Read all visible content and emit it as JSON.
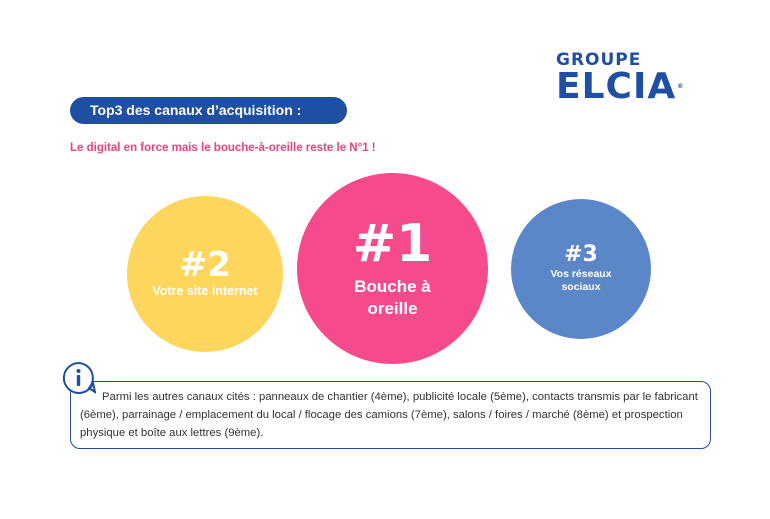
{
  "logo": {
    "line1": "GROUPE",
    "line2": "ELCIA",
    "reg": "®"
  },
  "heading": "Top3 des canaux d’acquisition :",
  "subtitle": "Le digital en force mais le bouche-à-oreille reste le N°1 !",
  "ranks": [
    {
      "rank": "#1",
      "label": "Bouche à oreille",
      "color": "#f54b8d"
    },
    {
      "rank": "#2",
      "label": "Votre site internet",
      "color": "#fdd65d"
    },
    {
      "rank": "#3",
      "label": "Vos réseaux sociaux",
      "color": "#5b86c8"
    }
  ],
  "info": {
    "icon": "info-icon",
    "text": "Parmi les autres canaux cités : panneaux de chantier (4ème), publicité locale (5ème), contacts transmis par le fabricant (6ème), parrainage / emplacement du local / flocage des camions (7ème), salons / foires / marché (8ème) et prospection physique et boîte aux lettres (9ème)."
  },
  "colors": {
    "brand_blue": "#1e4fa3",
    "pink": "#e8457a"
  }
}
